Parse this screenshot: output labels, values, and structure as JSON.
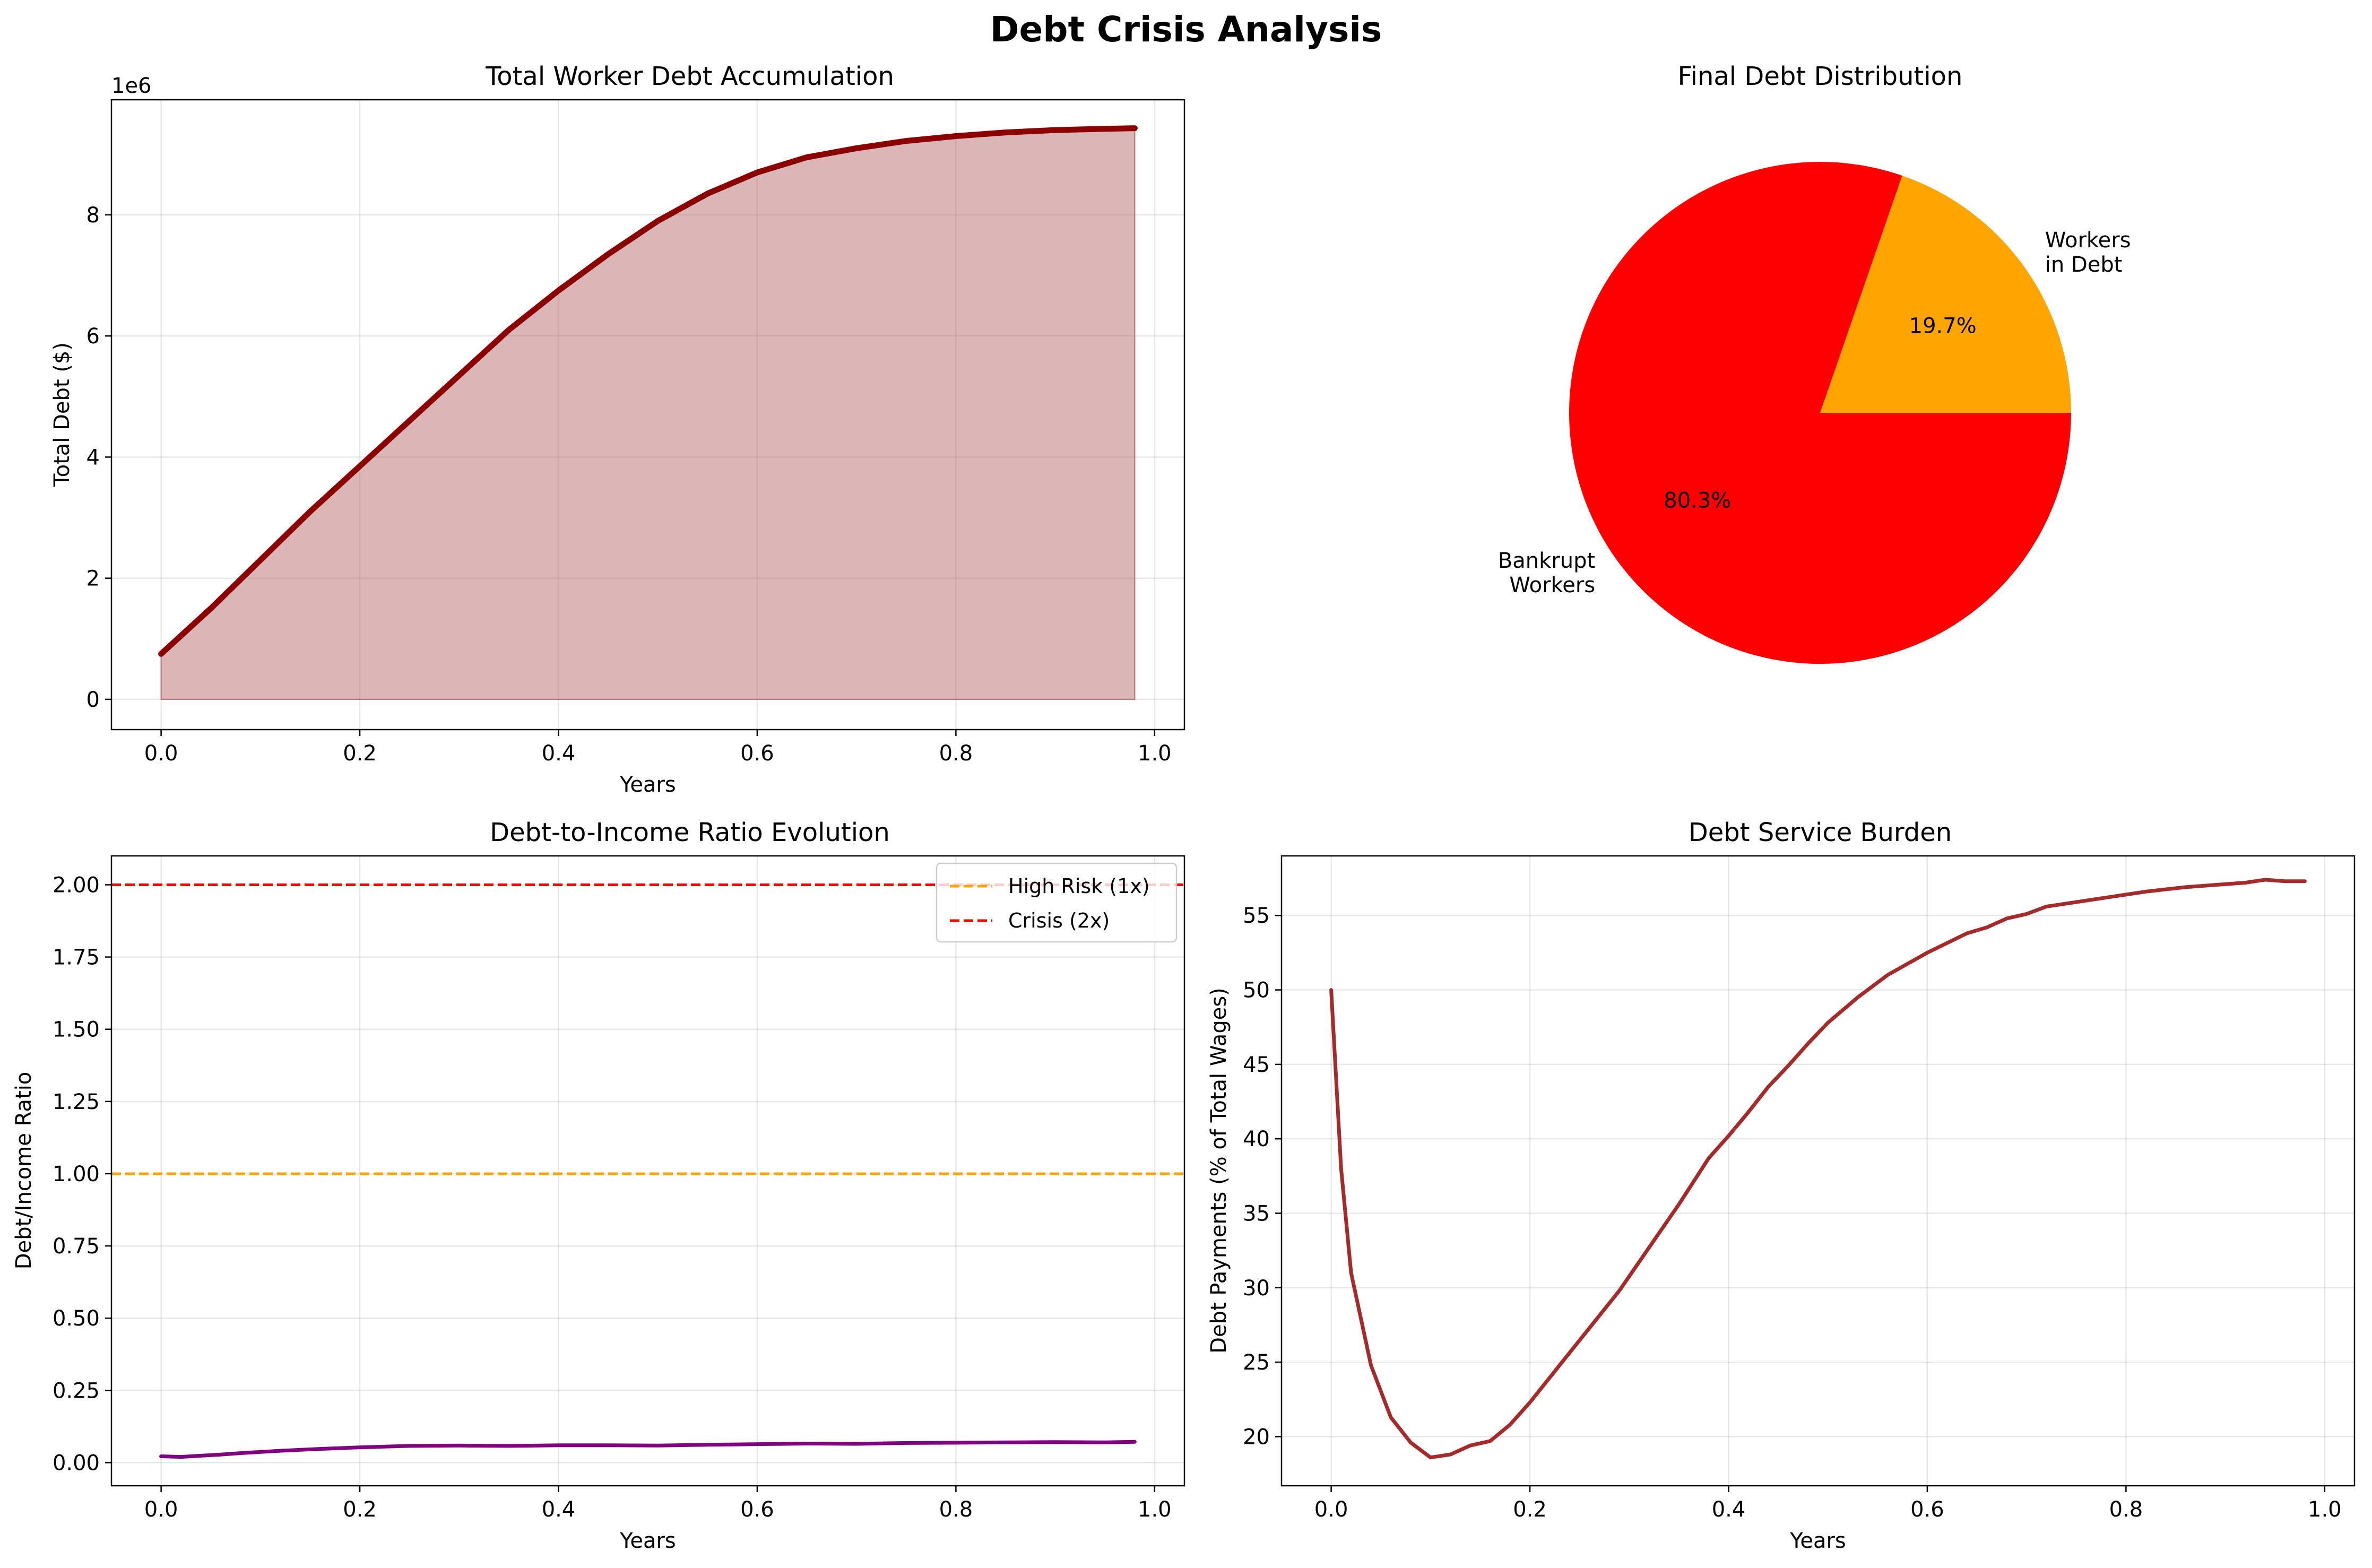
{
  "figure": {
    "title": "Debt Crisis Analysis"
  },
  "chart_data": [
    {
      "id": "debt",
      "type": "area",
      "title": "Total Worker Debt Accumulation",
      "xlabel": "Years",
      "ylabel": "Total Debt ($)",
      "y_offset_text": "1e6",
      "xlim": [
        -0.05,
        1.03
      ],
      "ylim": [
        -0.5,
        9.9
      ],
      "xticks": [
        0.0,
        0.2,
        0.4,
        0.6,
        0.8,
        1.0
      ],
      "xtick_labels": [
        "0.0",
        "0.2",
        "0.4",
        "0.6",
        "0.8",
        "1.0"
      ],
      "yticks": [
        0,
        2,
        4,
        6,
        8
      ],
      "ytick_labels": [
        "0",
        "2",
        "4",
        "6",
        "8"
      ],
      "grid": true,
      "colors": {
        "line": "#8b0000",
        "fill": "#b96d70"
      },
      "series": [
        {
          "x": [
            0.0,
            0.05,
            0.1,
            0.15,
            0.2,
            0.25,
            0.3,
            0.35,
            0.4,
            0.45,
            0.5,
            0.55,
            0.6,
            0.65,
            0.7,
            0.75,
            0.8,
            0.85,
            0.9,
            0.95,
            0.98
          ],
          "y": [
            0.75,
            1.5,
            2.3,
            3.1,
            3.85,
            4.6,
            5.35,
            6.1,
            6.75,
            7.35,
            7.9,
            8.35,
            8.7,
            8.95,
            9.1,
            9.22,
            9.3,
            9.36,
            9.4,
            9.42,
            9.43
          ]
        }
      ]
    },
    {
      "id": "pie",
      "type": "pie",
      "title": "Final Debt Distribution",
      "slices": [
        {
          "label_line1": "Workers",
          "label_line2": "in Debt",
          "value": 19.7,
          "pct_label": "19.7%",
          "color": "#ffa500"
        },
        {
          "label_line1": "Bankrupt",
          "label_line2": "Workers",
          "value": 80.3,
          "pct_label": "80.3%",
          "color": "#ff0000"
        }
      ]
    },
    {
      "id": "ratio",
      "type": "line",
      "title": "Debt-to-Income Ratio Evolution",
      "xlabel": "Years",
      "ylabel": "Debt/Income Ratio",
      "xlim": [
        -0.05,
        1.03
      ],
      "ylim": [
        -0.08,
        2.1
      ],
      "xticks": [
        0.0,
        0.2,
        0.4,
        0.6,
        0.8,
        1.0
      ],
      "xtick_labels": [
        "0.0",
        "0.2",
        "0.4",
        "0.6",
        "0.8",
        "1.0"
      ],
      "yticks": [
        0.0,
        0.25,
        0.5,
        0.75,
        1.0,
        1.25,
        1.5,
        1.75,
        2.0
      ],
      "ytick_labels": [
        "0.00",
        "0.25",
        "0.50",
        "0.75",
        "1.00",
        "1.25",
        "1.50",
        "1.75",
        "2.00"
      ],
      "grid": true,
      "legend_position": "top-right",
      "hlines": [
        {
          "y": 1.0,
          "name": "High Risk (1x)",
          "color": "#ffa500"
        },
        {
          "y": 2.0,
          "name": "Crisis (2x)",
          "color": "#ff0000"
        }
      ],
      "series": [
        {
          "color": "#800080",
          "x": [
            0.0,
            0.02,
            0.04,
            0.06,
            0.08,
            0.1,
            0.12,
            0.15,
            0.2,
            0.25,
            0.3,
            0.35,
            0.4,
            0.45,
            0.5,
            0.55,
            0.6,
            0.65,
            0.7,
            0.75,
            0.8,
            0.85,
            0.9,
            0.95,
            0.98
          ],
          "y": [
            0.022,
            0.02,
            0.024,
            0.028,
            0.033,
            0.037,
            0.041,
            0.046,
            0.053,
            0.058,
            0.059,
            0.058,
            0.06,
            0.06,
            0.059,
            0.062,
            0.064,
            0.066,
            0.065,
            0.068,
            0.069,
            0.07,
            0.071,
            0.07,
            0.072
          ]
        }
      ]
    },
    {
      "id": "burden",
      "type": "line",
      "title": "Debt Service Burden",
      "xlabel": "Years",
      "ylabel": "Debt Payments (% of Total Wages)",
      "xlim": [
        -0.05,
        1.03
      ],
      "ylim": [
        16.7,
        59.0
      ],
      "xticks": [
        0.0,
        0.2,
        0.4,
        0.6,
        0.8,
        1.0
      ],
      "xtick_labels": [
        "0.0",
        "0.2",
        "0.4",
        "0.6",
        "0.8",
        "1.0"
      ],
      "yticks": [
        20,
        25,
        30,
        35,
        40,
        45,
        50,
        55
      ],
      "ytick_labels": [
        "20",
        "25",
        "30",
        "35",
        "40",
        "45",
        "50",
        "55"
      ],
      "grid": true,
      "series": [
        {
          "color": "#a52a2a",
          "x": [
            0.0,
            0.01,
            0.02,
            0.04,
            0.06,
            0.08,
            0.1,
            0.12,
            0.14,
            0.16,
            0.18,
            0.2,
            0.23,
            0.26,
            0.29,
            0.32,
            0.35,
            0.38,
            0.4,
            0.42,
            0.44,
            0.46,
            0.48,
            0.5,
            0.53,
            0.56,
            0.6,
            0.64,
            0.66,
            0.68,
            0.7,
            0.72,
            0.74,
            0.78,
            0.82,
            0.86,
            0.9,
            0.92,
            0.94,
            0.96,
            0.98
          ],
          "y": [
            50.0,
            38.0,
            31.0,
            24.8,
            21.3,
            19.6,
            18.6,
            18.8,
            19.4,
            19.7,
            20.8,
            22.3,
            24.8,
            27.3,
            29.8,
            32.7,
            35.6,
            38.7,
            40.2,
            41.8,
            43.5,
            44.9,
            46.4,
            47.8,
            49.5,
            51.0,
            52.5,
            53.8,
            54.2,
            54.8,
            55.1,
            55.6,
            55.8,
            56.2,
            56.6,
            56.9,
            57.1,
            57.2,
            57.4,
            57.3,
            57.3
          ]
        }
      ]
    }
  ]
}
